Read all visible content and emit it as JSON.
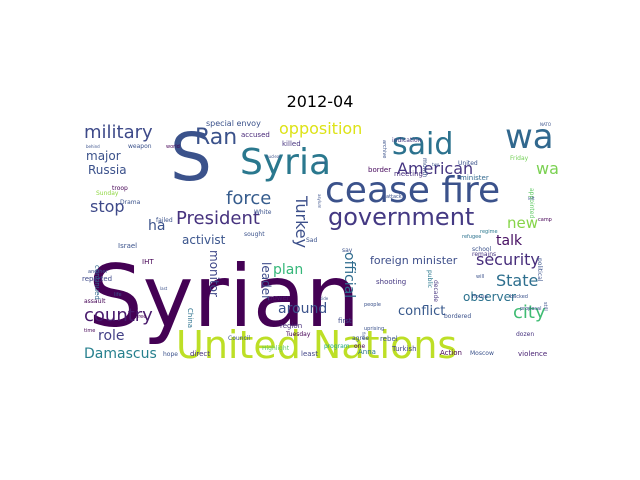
{
  "chart_data": {
    "type": "wordcloud",
    "title": "2012-04",
    "words": [
      {
        "text": "Syrian",
        "weight": 100,
        "color": "#440154"
      },
      {
        "text": "United Nations",
        "weight": 48,
        "color": "#bddf26"
      },
      {
        "text": "cease fire",
        "weight": 40,
        "color": "#3b528b"
      },
      {
        "text": "Syria",
        "weight": 38,
        "color": "#2a788e"
      },
      {
        "text": "S",
        "weight": 60,
        "color": "#3b528b"
      },
      {
        "text": "wa",
        "weight": 34,
        "color": "#31688e"
      },
      {
        "text": "said",
        "weight": 30,
        "color": "#2c728e"
      },
      {
        "text": "government",
        "weight": 22,
        "color": "#443983"
      },
      {
        "text": "military",
        "weight": 18,
        "color": "#3e4a89"
      },
      {
        "text": "country",
        "weight": 17,
        "color": "#481a6c"
      },
      {
        "text": "President",
        "weight": 16,
        "color": "#46327e"
      },
      {
        "text": "Ran",
        "weight": 20,
        "color": "#3b528b"
      },
      {
        "text": "force",
        "weight": 16,
        "color": "#365c8d"
      },
      {
        "text": "opposition",
        "weight": 15,
        "color": "#dde318"
      },
      {
        "text": "American",
        "weight": 15,
        "color": "#453581"
      },
      {
        "text": "security",
        "weight": 14,
        "color": "#472d7b"
      },
      {
        "text": "State",
        "weight": 15,
        "color": "#2e6f8e"
      },
      {
        "text": "city",
        "weight": 16,
        "color": "#3fbc73"
      },
      {
        "text": "Damascus",
        "weight": 14,
        "color": "#27808e"
      },
      {
        "text": "Turkey",
        "weight": 14,
        "color": "#3c4f8a"
      },
      {
        "text": "stop",
        "weight": 14,
        "color": "#3e4989"
      },
      {
        "text": "war",
        "weight": 14,
        "color": "#7ad151"
      },
      {
        "text": "new",
        "weight": 14,
        "color": "#86d549"
      },
      {
        "text": "talk",
        "weight": 13,
        "color": "#471063"
      },
      {
        "text": "official",
        "weight": 12,
        "color": "#2f6c8e"
      },
      {
        "text": "plan",
        "weight": 13,
        "color": "#35b779"
      },
      {
        "text": "role",
        "weight": 13,
        "color": "#424086"
      },
      {
        "text": "around",
        "weight": 13,
        "color": "#3b528b"
      },
      {
        "text": "conflict",
        "weight": 12,
        "color": "#38598c"
      },
      {
        "text": "leader",
        "weight": 11,
        "color": "#3e4c8a"
      },
      {
        "text": "monitor",
        "weight": 11,
        "color": "#3f4788"
      },
      {
        "text": "Russia",
        "weight": 11,
        "color": "#3b518b"
      },
      {
        "text": "major",
        "weight": 11,
        "color": "#3b528b"
      },
      {
        "text": "observer",
        "weight": 11,
        "color": "#2c728e"
      },
      {
        "text": "activist",
        "weight": 11,
        "color": "#3a548c"
      },
      {
        "text": "foreign minister",
        "weight": 10,
        "color": "#3d4e8a"
      },
      {
        "text": "ha",
        "weight": 12,
        "color": "#3b528b"
      },
      {
        "text": "special envoy",
        "weight": 7,
        "color": "#3b528b"
      },
      {
        "text": "accused",
        "weight": 6,
        "color": "#482878"
      },
      {
        "text": "killed",
        "weight": 6,
        "color": "#46337f"
      },
      {
        "text": "border",
        "weight": 6,
        "color": "#46085c"
      },
      {
        "text": "meeting",
        "weight": 6,
        "color": "#472f7d"
      },
      {
        "text": "minister",
        "weight": 6,
        "color": "#31688e"
      },
      {
        "text": "shooting",
        "weight": 6,
        "color": "#453882"
      },
      {
        "text": "reported",
        "weight": 6,
        "color": "#3e4989"
      },
      {
        "text": "continued",
        "weight": 6,
        "color": "#31688e"
      },
      {
        "text": "Israel",
        "weight": 6,
        "color": "#3b528b"
      },
      {
        "text": "IHT",
        "weight": 6,
        "color": "#440154"
      },
      {
        "text": "China",
        "weight": 6,
        "color": "#2c728e"
      },
      {
        "text": "region",
        "weight": 6,
        "color": "#472c7a"
      },
      {
        "text": "power",
        "weight": 6,
        "color": "#48186a"
      },
      {
        "text": "first",
        "weight": 6,
        "color": "#3e4989"
      },
      {
        "text": "rebel",
        "weight": 6,
        "color": "#3b528b"
      },
      {
        "text": "Turkish",
        "weight": 6,
        "color": "#414487"
      },
      {
        "text": "Action",
        "weight": 6,
        "color": "#440154"
      },
      {
        "text": "Moscow",
        "weight": 5,
        "color": "#3b528b"
      },
      {
        "text": "violence",
        "weight": 6,
        "color": "#482173"
      },
      {
        "text": "Anna",
        "weight": 6,
        "color": "#2a788e"
      },
      {
        "text": "program",
        "weight": 5,
        "color": "#22a884"
      },
      {
        "text": "least",
        "weight": 6,
        "color": "#414487"
      },
      {
        "text": "direct",
        "weight": 6,
        "color": "#472f7d"
      },
      {
        "text": "hope",
        "weight": 5,
        "color": "#3b528b"
      },
      {
        "text": "Highlight",
        "weight": 5,
        "color": "#5ec962"
      },
      {
        "text": "public",
        "weight": 5,
        "color": "#2a788e"
      },
      {
        "text": "decade",
        "weight": 5,
        "color": "#46337f"
      },
      {
        "text": "dozen",
        "weight": 5,
        "color": "#46327e"
      },
      {
        "text": "remains",
        "weight": 5,
        "color": "#46337f"
      },
      {
        "text": "school",
        "weight": 5,
        "color": "#3b528b"
      },
      {
        "text": "refugee",
        "weight": 4,
        "color": "#2c728e"
      },
      {
        "text": "regime",
        "weight": 4,
        "color": "#2a788e"
      },
      {
        "text": "Friday",
        "weight": 5,
        "color": "#73d056"
      },
      {
        "text": "United",
        "weight": 5,
        "color": "#3b528b"
      },
      {
        "text": "appointed",
        "weight": 5,
        "color": "#5ec962"
      },
      {
        "text": "month",
        "weight": 5,
        "color": "#3b528b"
      },
      {
        "text": "indication",
        "weight": 5,
        "color": "#453882"
      },
      {
        "text": "archive",
        "weight": 4,
        "color": "#3b528b"
      },
      {
        "text": "attack",
        "weight": 4,
        "color": "#3b528b"
      },
      {
        "text": "Sunday",
        "weight": 5,
        "color": "#90d743"
      },
      {
        "text": "troop",
        "weight": 5,
        "color": "#440154"
      },
      {
        "text": "Drama",
        "weight": 5,
        "color": "#3b528b"
      },
      {
        "text": "weapon",
        "weight": 5,
        "color": "#3b528b"
      },
      {
        "text": "world",
        "weight": 4,
        "color": "#440154"
      },
      {
        "text": "failed",
        "weight": 5,
        "color": "#3b528b"
      },
      {
        "text": "White",
        "weight": 5,
        "color": "#3b528b"
      },
      {
        "text": "sought",
        "weight": 5,
        "color": "#3b528b"
      },
      {
        "text": "say",
        "weight": 5,
        "color": "#3b528b"
      },
      {
        "text": "Sad",
        "weight": 5,
        "color": "#3b528b"
      },
      {
        "text": "Tuesday",
        "weight": 5,
        "color": "#440154"
      },
      {
        "text": "Council",
        "weight": 5,
        "color": "#3b528b"
      },
      {
        "text": "agree",
        "weight": 5,
        "color": "#3b528b"
      },
      {
        "text": "one",
        "weight": 5,
        "color": "#440154"
      },
      {
        "text": "people",
        "weight": 4,
        "color": "#3b528b"
      },
      {
        "text": "uprising",
        "weight": 4,
        "color": "#3b528b"
      },
      {
        "text": "political",
        "weight": 5,
        "color": "#3b528b"
      },
      {
        "text": "camp",
        "weight": 4,
        "color": "#440154"
      },
      {
        "text": "backed",
        "weight": 4,
        "color": "#3b528b"
      },
      {
        "text": "proposal",
        "weight": 4,
        "color": "#3b528b"
      },
      {
        "text": "Three",
        "weight": 4,
        "color": "#440154"
      },
      {
        "text": "another",
        "weight": 4,
        "color": "#3b528b"
      },
      {
        "text": "life",
        "weight": 4,
        "color": "#3b528b"
      },
      {
        "text": "time",
        "weight": 4,
        "color": "#440154"
      },
      {
        "text": "assault",
        "weight": 5,
        "color": "#440154"
      },
      {
        "text": "NATO",
        "weight": 3,
        "color": "#3b528b"
      },
      {
        "text": "House",
        "weight": 4,
        "color": "#3b528b"
      },
      {
        "text": "still",
        "weight": 4,
        "color": "#3b528b"
      },
      {
        "text": "bordered",
        "weight": 5,
        "color": "#3b528b"
      },
      {
        "text": "will",
        "weight": 4,
        "color": "#3b528b"
      },
      {
        "text": "behind",
        "weight": 3,
        "color": "#3b528b"
      },
      {
        "text": "nuclear",
        "weight": 3,
        "color": "#3b528b"
      },
      {
        "text": "asylum",
        "weight": 3,
        "color": "#3b528b"
      },
      {
        "text": "carry",
        "weight": 3,
        "color": "#3b528b"
      },
      {
        "text": "side",
        "weight": 3,
        "color": "#3b528b"
      },
      {
        "text": "last",
        "weight": 3,
        "color": "#3b528b"
      },
      {
        "text": "left",
        "weight": 3,
        "color": "#3b528b"
      },
      {
        "text": "two",
        "weight": 3,
        "color": "#3b528b"
      },
      {
        "text": "find",
        "weight": 3,
        "color": "#3b528b"
      }
    ]
  }
}
